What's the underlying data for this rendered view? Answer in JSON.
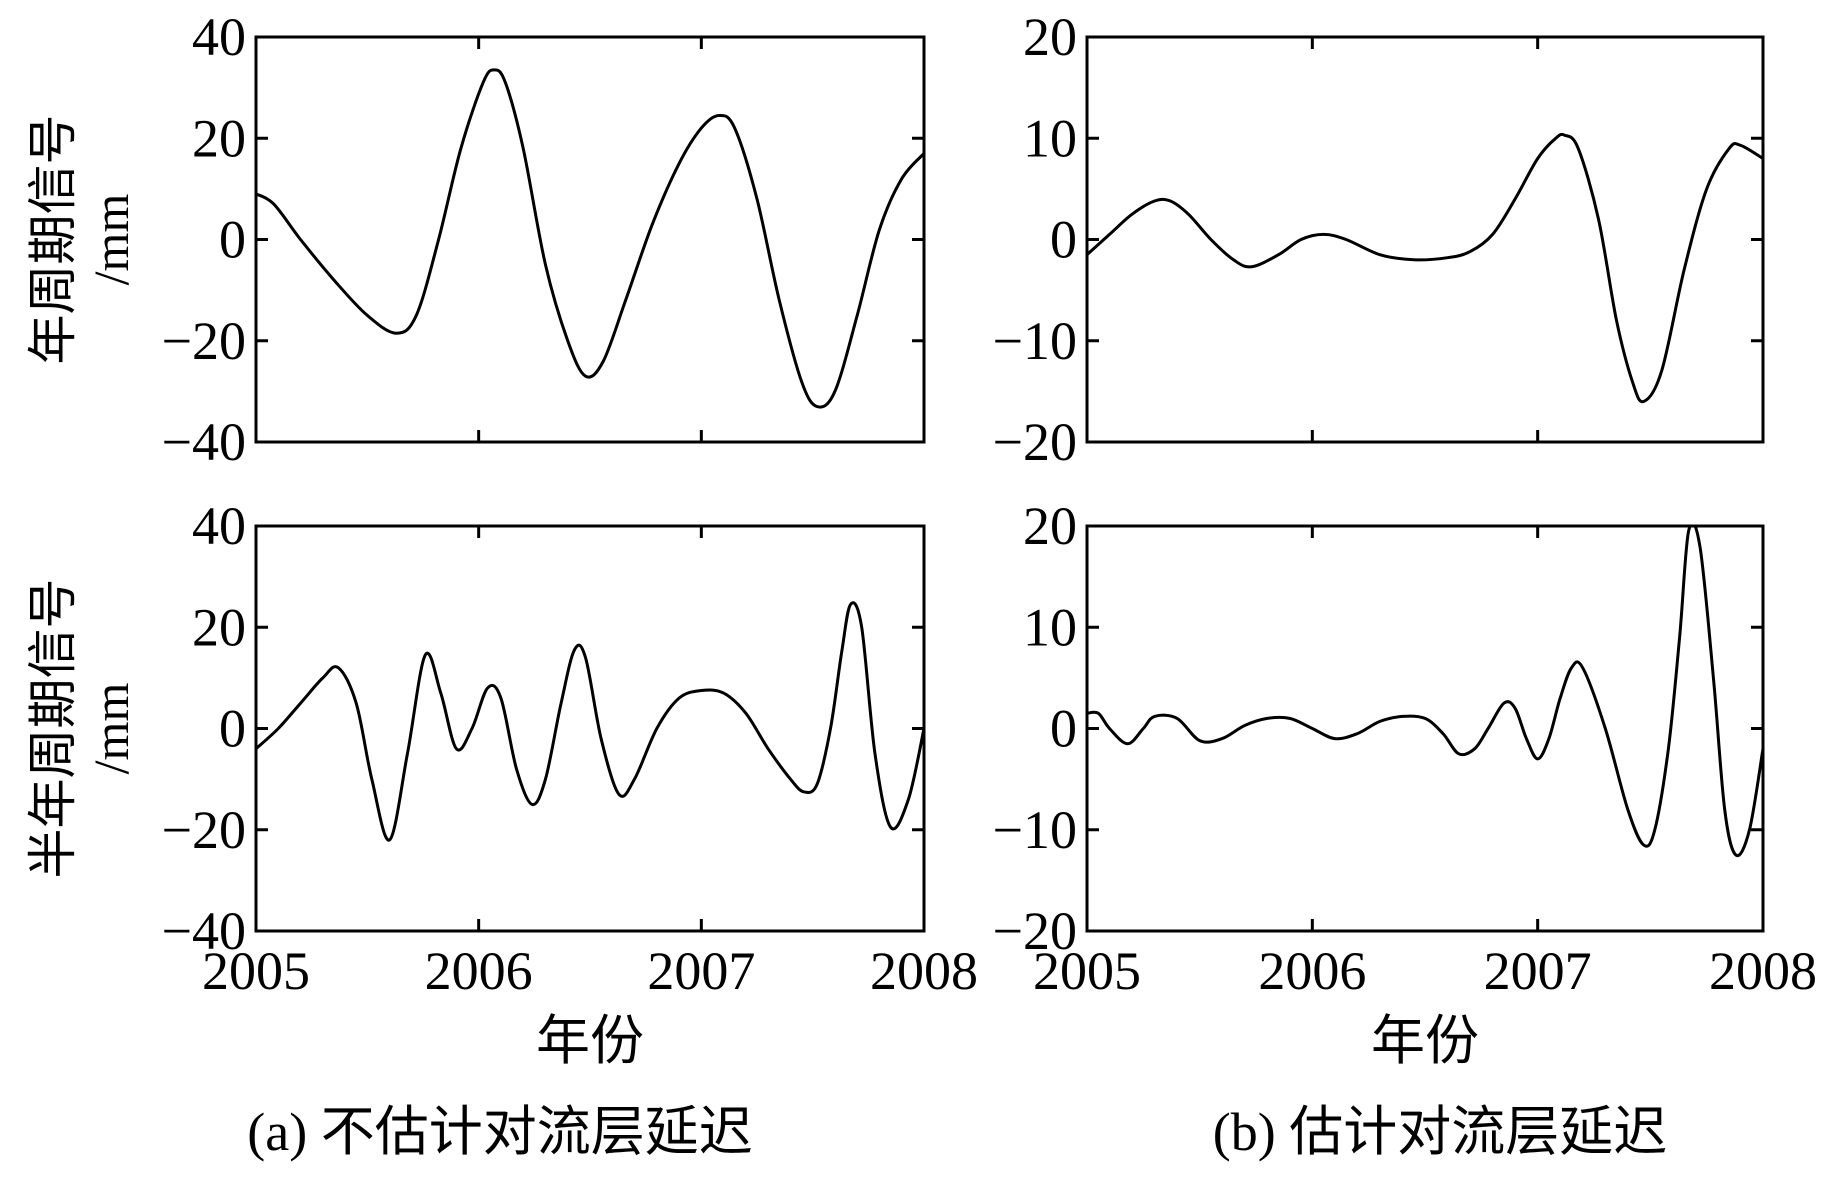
{
  "chart_data": [
    {
      "type": "line",
      "panel": "a-top",
      "ylabel": [
        "年周期信号",
        "/mm"
      ],
      "ylim": [
        -40,
        40
      ],
      "yticks": [
        -40,
        -20,
        0,
        20,
        40
      ],
      "ytick_labels": [
        "−40",
        "−20",
        "0",
        "20",
        "40"
      ],
      "xlim": [
        2005,
        2008
      ],
      "xticks": [
        2005,
        2006,
        2007,
        2008
      ],
      "xtick_labels": [],
      "xlabel": "",
      "grid": false,
      "series": [
        {
          "x": [
            2005.0,
            2005.08,
            2005.2,
            2005.35,
            2005.5,
            2005.63,
            2005.72,
            2005.82,
            2005.92,
            2006.02,
            2006.07,
            2006.12,
            2006.2,
            2006.3,
            2006.4,
            2006.48,
            2006.56,
            2006.66,
            2006.78,
            2006.9,
            2007.0,
            2007.08,
            2007.15,
            2007.25,
            2007.35,
            2007.45,
            2007.52,
            2007.6,
            2007.7,
            2007.8,
            2007.9,
            2008.0
          ],
          "y": [
            9,
            7,
            0,
            -8,
            -15,
            -18.5,
            -15,
            0,
            18,
            31,
            33.5,
            31,
            18,
            -5,
            -20,
            -27,
            -24,
            -12,
            3,
            15,
            22,
            24.5,
            22,
            8,
            -12,
            -28,
            -33,
            -30,
            -15,
            2,
            12,
            17
          ]
        }
      ]
    },
    {
      "type": "line",
      "panel": "b-top",
      "ylim": [
        -20,
        20
      ],
      "yticks": [
        -20,
        -10,
        0,
        10,
        20
      ],
      "ytick_labels": [
        "−20",
        "−10",
        "0",
        "10",
        "20"
      ],
      "xlim": [
        2005,
        2008
      ],
      "xticks": [
        2005,
        2006,
        2007,
        2008
      ],
      "xtick_labels": [],
      "xlabel": "",
      "grid": false,
      "series": [
        {
          "x": [
            2005.0,
            2005.1,
            2005.2,
            2005.3,
            2005.37,
            2005.45,
            2005.55,
            2005.65,
            2005.73,
            2005.85,
            2005.95,
            2006.05,
            2006.15,
            2006.3,
            2006.45,
            2006.6,
            2006.7,
            2006.8,
            2006.9,
            2007.0,
            2007.08,
            2007.12,
            2007.18,
            2007.27,
            2007.35,
            2007.42,
            2007.47,
            2007.55,
            2007.65,
            2007.75,
            2007.85,
            2007.9,
            2008.0
          ],
          "y": [
            -1.5,
            0.5,
            2.5,
            3.8,
            3.8,
            2.5,
            0,
            -2,
            -2.7,
            -1.5,
            0,
            0.5,
            0,
            -1.5,
            -2,
            -1.8,
            -1.2,
            0.5,
            4,
            8,
            10,
            10.3,
            9,
            2,
            -8,
            -14,
            -16,
            -13,
            -3,
            5,
            9,
            9.3,
            8
          ]
        }
      ]
    },
    {
      "type": "line",
      "panel": "a-bottom",
      "ylabel": [
        "半年周期信号",
        "/mm"
      ],
      "ylim": [
        -40,
        40
      ],
      "yticks": [
        -40,
        -20,
        0,
        20,
        40
      ],
      "ytick_labels": [
        "−40",
        "−20",
        "0",
        "20",
        "40"
      ],
      "xlim": [
        2005,
        2008
      ],
      "xticks": [
        2005,
        2006,
        2007,
        2008
      ],
      "xtick_labels": [
        "2005",
        "2006",
        "2007",
        "2008"
      ],
      "xlabel": "年份",
      "grid": false,
      "series": [
        {
          "x": [
            2005.0,
            2005.1,
            2005.2,
            2005.3,
            2005.37,
            2005.45,
            2005.52,
            2005.6,
            2005.68,
            2005.76,
            2005.83,
            2005.9,
            2005.97,
            2006.04,
            2006.1,
            2006.17,
            2006.24,
            2006.3,
            2006.37,
            2006.43,
            2006.48,
            2006.55,
            2006.63,
            2006.7,
            2006.8,
            2006.9,
            2007.0,
            2007.1,
            2007.2,
            2007.3,
            2007.4,
            2007.46,
            2007.52,
            2007.58,
            2007.63,
            2007.67,
            2007.72,
            2007.78,
            2007.85,
            2007.93,
            2008.0
          ],
          "y": [
            -4,
            0,
            5,
            10,
            12,
            5,
            -10,
            -22,
            -5,
            14.5,
            7,
            -4,
            0,
            8,
            6,
            -8,
            -15,
            -10,
            5,
            15.5,
            14,
            -2,
            -13,
            -10,
            0,
            6,
            7.5,
            7,
            3,
            -4,
            -10,
            -12.5,
            -11,
            0,
            15,
            24.5,
            20,
            -5,
            -19.5,
            -14,
            0
          ]
        }
      ]
    },
    {
      "type": "line",
      "panel": "b-bottom",
      "ylim": [
        -20,
        20
      ],
      "yticks": [
        -20,
        -10,
        0,
        10,
        20
      ],
      "ytick_labels": [
        "−20",
        "−10",
        "0",
        "10",
        "20"
      ],
      "xlim": [
        2005,
        2008
      ],
      "xticks": [
        2005,
        2006,
        2007,
        2008
      ],
      "xtick_labels": [
        "2005",
        "2006",
        "2007",
        "2008"
      ],
      "xlabel": "年份",
      "grid": false,
      "series": [
        {
          "x": [
            2005.0,
            2005.05,
            2005.1,
            2005.18,
            2005.25,
            2005.3,
            2005.4,
            2005.5,
            2005.6,
            2005.7,
            2005.8,
            2005.9,
            2006.0,
            2006.1,
            2006.2,
            2006.3,
            2006.4,
            2006.5,
            2006.58,
            2006.65,
            2006.72,
            2006.78,
            2006.85,
            2006.9,
            2006.95,
            2007.0,
            2007.05,
            2007.1,
            2007.15,
            2007.2,
            2007.3,
            2007.4,
            2007.47,
            2007.52,
            2007.58,
            2007.63,
            2007.67,
            2007.72,
            2007.78,
            2007.83,
            2007.88,
            2007.94,
            2008.0
          ],
          "y": [
            1.5,
            1.5,
            0,
            -1.5,
            0,
            1.2,
            1,
            -1.2,
            -1,
            0.3,
            1,
            1,
            0,
            -1,
            -0.5,
            0.7,
            1.2,
            1,
            -0.5,
            -2.5,
            -2,
            0,
            2.5,
            2,
            -1,
            -3,
            -1,
            3,
            6,
            6,
            0,
            -8,
            -11.5,
            -10,
            -2,
            9,
            19.5,
            18,
            5,
            -8,
            -12.5,
            -10,
            -2
          ]
        }
      ]
    }
  ],
  "captions": {
    "left": "(a) 不估计对流层延迟",
    "right": "(b) 估计对流层延迟"
  }
}
